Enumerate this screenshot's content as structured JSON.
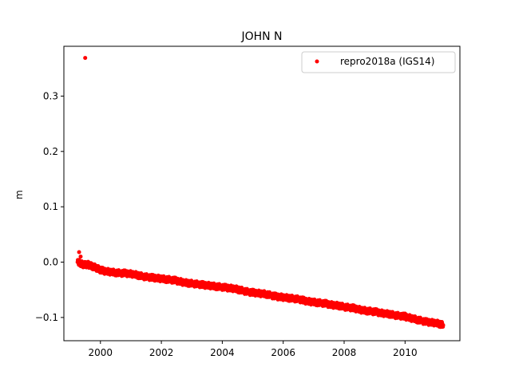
{
  "chart_data": {
    "type": "scatter",
    "title": "JOHN N",
    "xlabel": "",
    "ylabel": "m",
    "xlim": [
      1998.8,
      2011.8
    ],
    "ylim": [
      -0.142,
      0.39
    ],
    "xticks": [
      2000,
      2002,
      2004,
      2006,
      2008,
      2010
    ],
    "xtick_labels": [
      "2000",
      "2002",
      "2004",
      "2006",
      "2008",
      "2010"
    ],
    "yticks": [
      -0.1,
      0.0,
      0.1,
      0.2,
      0.3
    ],
    "ytick_labels": [
      "−0.1",
      "0.0",
      "0.1",
      "0.2",
      "0.3"
    ],
    "grid": false,
    "legend": {
      "position": "top-right"
    },
    "series": [
      {
        "name": "repro2018a (IGS14)",
        "color": "#ff0000",
        "marker": "point",
        "x": [
          1999.25,
          1999.35,
          1999.4,
          1999.5,
          1999.58,
          1999.65,
          1999.75,
          1999.85,
          1999.95,
          2000.05,
          2000.2,
          2000.35,
          2000.5,
          2000.65,
          2000.8,
          2000.95,
          2001.1,
          2001.25,
          2001.4,
          2001.55,
          2001.7,
          2001.85,
          2002.0,
          2002.15,
          2002.3,
          2002.45,
          2002.6,
          2002.75,
          2002.9,
          2003.05,
          2003.2,
          2003.35,
          2003.5,
          2003.65,
          2003.8,
          2003.95,
          2004.1,
          2004.25,
          2004.4,
          2004.55,
          2004.7,
          2004.85,
          2005.0,
          2005.15,
          2005.3,
          2005.45,
          2005.6,
          2005.75,
          2005.9,
          2006.05,
          2006.2,
          2006.35,
          2006.5,
          2006.65,
          2006.8,
          2006.95,
          2007.1,
          2007.25,
          2007.4,
          2007.55,
          2007.7,
          2007.85,
          2008.0,
          2008.15,
          2008.3,
          2008.45,
          2008.6,
          2008.75,
          2008.9,
          2009.05,
          2009.2,
          2009.35,
          2009.5,
          2009.65,
          2009.8,
          2009.95,
          2010.1,
          2010.25,
          2010.4,
          2010.55,
          2010.7,
          2010.85,
          2011.0,
          2011.15,
          2011.25,
          1999.3,
          1999.35,
          1999.5,
          2010.0
        ],
        "y": [
          0.0,
          -0.002,
          -0.004,
          -0.005,
          -0.004,
          -0.006,
          -0.008,
          -0.01,
          -0.013,
          -0.015,
          -0.017,
          -0.018,
          -0.019,
          -0.02,
          -0.02,
          -0.021,
          -0.022,
          -0.024,
          -0.026,
          -0.027,
          -0.028,
          -0.029,
          -0.03,
          -0.031,
          -0.032,
          -0.033,
          -0.035,
          -0.037,
          -0.038,
          -0.039,
          -0.04,
          -0.041,
          -0.042,
          -0.043,
          -0.044,
          -0.045,
          -0.046,
          -0.047,
          -0.048,
          -0.05,
          -0.052,
          -0.054,
          -0.055,
          -0.056,
          -0.057,
          -0.058,
          -0.06,
          -0.062,
          -0.063,
          -0.064,
          -0.065,
          -0.066,
          -0.067,
          -0.069,
          -0.071,
          -0.072,
          -0.073,
          -0.074,
          -0.075,
          -0.077,
          -0.078,
          -0.079,
          -0.081,
          -0.082,
          -0.083,
          -0.085,
          -0.087,
          -0.088,
          -0.089,
          -0.09,
          -0.092,
          -0.093,
          -0.094,
          -0.096,
          -0.097,
          -0.098,
          -0.1,
          -0.102,
          -0.104,
          -0.106,
          -0.108,
          -0.109,
          -0.11,
          -0.112,
          -0.114,
          0.018,
          0.01,
          0.369,
          -0.093
        ]
      }
    ]
  }
}
